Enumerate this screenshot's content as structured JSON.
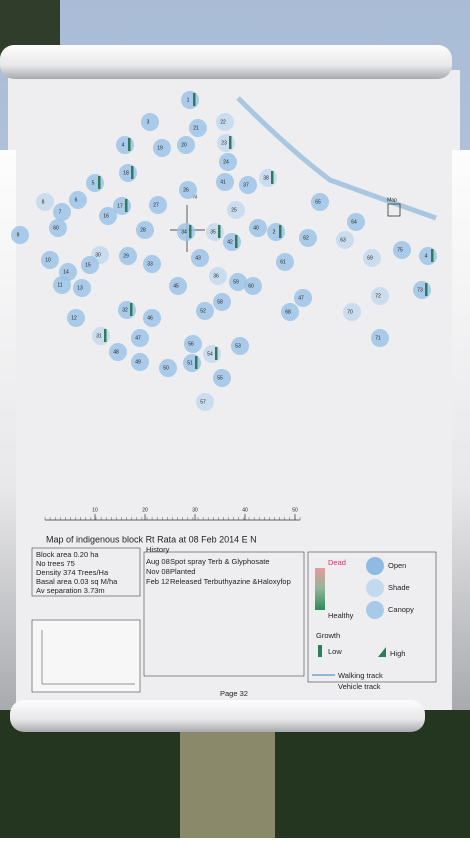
{
  "map": {
    "title": "Map of indigenous block Rt Rata at 08 Feb 2014 E N",
    "north": "N",
    "map_label": "Map",
    "trees": [
      "1",
      "3",
      "22",
      "21",
      "4",
      "19",
      "20",
      "23",
      "24",
      "18",
      "41",
      "37",
      "38",
      "5",
      "26",
      "65",
      "6",
      "8",
      "7",
      "17",
      "27",
      "16",
      "25",
      "9",
      "60",
      "28",
      "34",
      "35",
      "40",
      "2",
      "64",
      "62",
      "63",
      "42",
      "75",
      "4",
      "10",
      "30",
      "29",
      "15",
      "33",
      "43",
      "69",
      "61",
      "14",
      "11",
      "13",
      "36",
      "59",
      "60",
      "45",
      "73",
      "72",
      "47",
      "58",
      "52",
      "68",
      "70",
      "32",
      "12",
      "46",
      "71",
      "31",
      "47",
      "56",
      "53",
      "48",
      "54",
      "49",
      "51",
      "50",
      "55",
      "57"
    ],
    "scale": {
      "lim": [
        0,
        51
      ],
      "ticks": [
        10,
        20,
        30,
        40,
        50
      ]
    }
  },
  "info": [
    "Block area 0.20 ha",
    "No trees 75",
    "Density 374 Trees/Ha",
    "Basal area 0.03 sq M/ha",
    "Av separation 3.73m"
  ],
  "history": {
    "title": "History",
    "entries": [
      [
        "Aug 08",
        "Spot spray Terb & Glyphosate"
      ],
      [
        "Nov 08",
        "Planted"
      ],
      [
        "Feb 12",
        "Released Terbuthyazine &Haloxyfop"
      ]
    ]
  },
  "legend": {
    "dead": "Dead",
    "healthy": "Healthy",
    "open": "Open",
    "shade": "Shade",
    "canopy": "Canopy",
    "growth": "Growth",
    "low": "Low",
    "high": "High",
    "walking": "Walking track",
    "vehicle": "Vehicle track"
  },
  "footer": "Page 32"
}
